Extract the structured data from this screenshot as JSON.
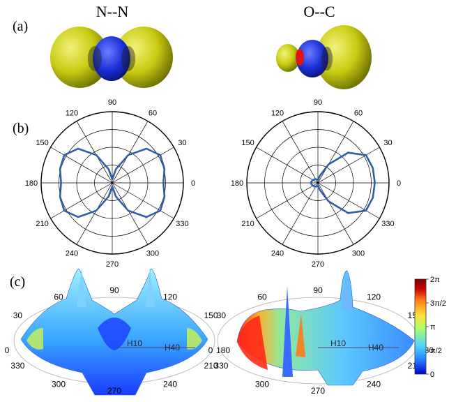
{
  "panel_labels": [
    "(a)",
    "(b)",
    "(c)"
  ],
  "molecules": [
    {
      "title": "N--N",
      "lobe_color": "#c9cc12",
      "core_color": "#1a2fd8",
      "core_accent": "#1a2fd8"
    },
    {
      "title": "O--C",
      "lobe_color": "#c9cc12",
      "core_color": "#1a2fd8",
      "core_accent": "#e01616"
    }
  ],
  "chart_data": [
    {
      "type": "polar",
      "name_hint": "N--N",
      "angle_ticks": [
        "0",
        "30",
        "60",
        "90",
        "120",
        "150",
        "180",
        "210",
        "240",
        "270",
        "300",
        "330"
      ],
      "angles_deg": [
        0,
        15,
        30,
        45,
        60,
        75,
        90,
        105,
        120,
        135,
        150,
        165,
        180,
        195,
        210,
        225,
        240,
        255,
        270,
        285,
        300,
        315,
        330,
        345,
        360
      ],
      "r": [
        0.72,
        0.76,
        0.78,
        0.68,
        0.45,
        0.2,
        0.05,
        0.2,
        0.45,
        0.68,
        0.78,
        0.76,
        0.72,
        0.76,
        0.78,
        0.68,
        0.45,
        0.2,
        0.05,
        0.2,
        0.45,
        0.68,
        0.78,
        0.76,
        0.72
      ],
      "rmax": 1,
      "line_color": "#2f5fa6"
    },
    {
      "type": "polar",
      "name_hint": "O--C",
      "angle_ticks": [
        "0",
        "30",
        "60",
        "90",
        "120",
        "150",
        "180",
        "210",
        "240",
        "270",
        "300",
        "330"
      ],
      "angles_deg": [
        0,
        15,
        30,
        45,
        60,
        75,
        90,
        105,
        120,
        135,
        150,
        165,
        180,
        195,
        210,
        225,
        240,
        255,
        270,
        285,
        300,
        315,
        330,
        345,
        360
      ],
      "r": [
        0.8,
        0.8,
        0.78,
        0.6,
        0.3,
        0.1,
        0.04,
        0.05,
        0.06,
        0.07,
        0.08,
        0.09,
        0.1,
        0.09,
        0.08,
        0.07,
        0.06,
        0.05,
        0.04,
        0.1,
        0.3,
        0.6,
        0.78,
        0.8,
        0.8
      ],
      "rmax": 1,
      "line_color": "#2f5fa6"
    },
    {
      "type": "surface3d",
      "angle_ticks": [
        "0",
        "30",
        "60",
        "90",
        "120",
        "150",
        "180",
        "210",
        "240",
        "270",
        "300",
        "330"
      ],
      "axis_labels": [
        "H10",
        "H40"
      ],
      "colormap": "jet"
    },
    {
      "type": "surface3d",
      "angle_ticks": [
        "0",
        "30",
        "60",
        "90",
        "120",
        "150",
        "180",
        "210",
        "240",
        "270",
        "300",
        "330"
      ],
      "axis_labels": [
        "H10",
        "H40"
      ],
      "colormap": "jet"
    }
  ],
  "colorbar": {
    "ticks": [
      "0",
      "π/2",
      "π",
      "3π/2",
      "2π"
    ],
    "colors": [
      "#0000c8",
      "#1f7bff",
      "#4fd6ff",
      "#a8ff6a",
      "#ffe23a",
      "#ff7a1a",
      "#c80000",
      "#7a0000"
    ]
  }
}
